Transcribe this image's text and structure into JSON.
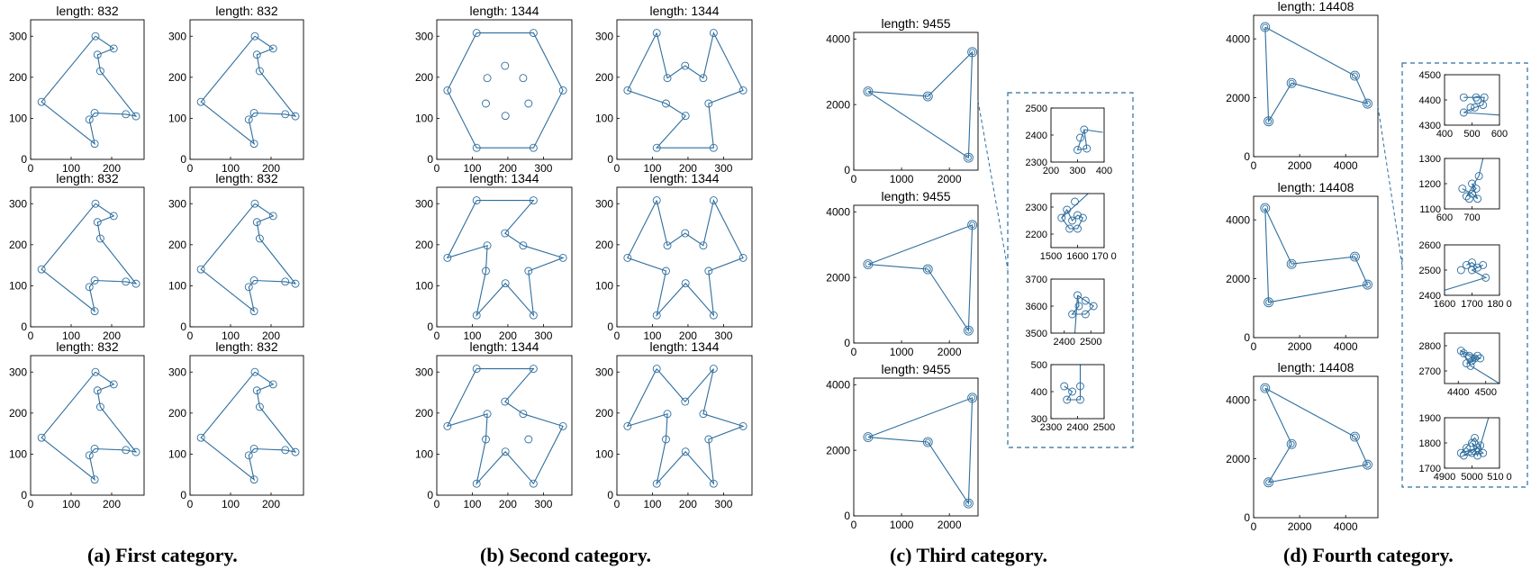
{
  "captions": {
    "a": "(a) First category.",
    "b": "(b) Second category.",
    "c": "(c) Third category.",
    "d": "(d) Fourth category."
  },
  "colors": {
    "line": "#2e6e9e",
    "box": "#2e6e9e",
    "axis": "#000000"
  },
  "chart_data": [
    {
      "type": "scatter",
      "category": "First",
      "title": "length: 832",
      "xlim": [
        0,
        280
      ],
      "ylim": [
        0,
        340
      ],
      "xticks": [
        0,
        100,
        200
      ],
      "yticks": [
        0,
        100,
        200,
        300
      ],
      "points": [
        [
          160,
          300
        ],
        [
          205,
          270
        ],
        [
          165,
          255
        ],
        [
          172,
          215
        ],
        [
          260,
          105
        ],
        [
          235,
          110
        ],
        [
          158,
          113
        ],
        [
          145,
          97
        ],
        [
          158,
          38
        ],
        [
          27,
          140
        ]
      ],
      "tours": [
        [
          0,
          1,
          2,
          3,
          4,
          5,
          6,
          7,
          8,
          9,
          0
        ],
        [
          0,
          1,
          2,
          3,
          4,
          5,
          6,
          7,
          8,
          9,
          0
        ],
        [
          0,
          1,
          2,
          3,
          4,
          5,
          6,
          7,
          8,
          9,
          0
        ],
        [
          0,
          1,
          2,
          3,
          4,
          5,
          6,
          7,
          8,
          9,
          0
        ],
        [
          0,
          1,
          2,
          3,
          4,
          5,
          6,
          7,
          8,
          9,
          0
        ],
        [
          0,
          1,
          2,
          3,
          4,
          5,
          6,
          7,
          8,
          9,
          0
        ]
      ]
    },
    {
      "type": "scatter",
      "category": "Second",
      "title": "length: 1344",
      "xlim": [
        0,
        380
      ],
      "ylim": [
        0,
        340
      ],
      "xticks": [
        0,
        100,
        200,
        300
      ],
      "yticks": [
        0,
        100,
        200,
        300
      ],
      "points": [
        [
          112,
          308
        ],
        [
          272,
          308
        ],
        [
          30,
          168
        ],
        [
          355,
          168
        ],
        [
          192,
          228
        ],
        [
          243,
          198
        ],
        [
          142,
          198
        ],
        [
          138,
          136
        ],
        [
          193,
          106
        ],
        [
          258,
          136
        ],
        [
          112,
          28
        ],
        [
          272,
          28
        ]
      ],
      "tours": [
        [
          0,
          1,
          3,
          11,
          10,
          2,
          0
        ],
        [
          0,
          6,
          4,
          5,
          1,
          3,
          9,
          11,
          10,
          8,
          7,
          2,
          0
        ],
        [
          0,
          1,
          4,
          5,
          3,
          9,
          11,
          8,
          10,
          7,
          6,
          2,
          0
        ],
        [
          0,
          6,
          4,
          5,
          1,
          3,
          9,
          11,
          8,
          10,
          7,
          2,
          0
        ],
        [
          0,
          1,
          4,
          5,
          3,
          11,
          8,
          10,
          7,
          6,
          2,
          0
        ],
        [
          0,
          4,
          1,
          5,
          3,
          9,
          11,
          8,
          10,
          7,
          6,
          2,
          0
        ]
      ]
    },
    {
      "type": "scatter",
      "category": "Third",
      "title": "length: 9455",
      "xlim": [
        0,
        2600
      ],
      "ylim": [
        0,
        4200
      ],
      "xticks": [
        0,
        1000,
        2000
      ],
      "yticks": [
        0,
        2000,
        4000
      ],
      "points": [
        [
          300,
          2400
        ],
        [
          1550,
          2250
        ],
        [
          2480,
          3600
        ],
        [
          2400,
          380
        ]
      ],
      "tours": [
        [
          0,
          1,
          2,
          3,
          0
        ],
        [
          0,
          2,
          3,
          1,
          0
        ],
        [
          0,
          2,
          3,
          1,
          0
        ]
      ]
    },
    {
      "type": "scatter",
      "category": "Fourth",
      "title": "length: 14408",
      "xlim": [
        0,
        5400
      ],
      "ylim": [
        0,
        4800
      ],
      "xticks": [
        0,
        2000,
        4000
      ],
      "yticks": [
        0,
        2000,
        4000
      ],
      "points": [
        [
          500,
          4400
        ],
        [
          4400,
          2750
        ],
        [
          4950,
          1800
        ],
        [
          1650,
          2500
        ],
        [
          650,
          1200
        ]
      ],
      "tours": [
        [
          0,
          1,
          2,
          3,
          4,
          0
        ],
        [
          0,
          4,
          2,
          1,
          3,
          0
        ],
        [
          0,
          1,
          2,
          4,
          3,
          0
        ]
      ]
    },
    {
      "type": "scatter",
      "category": "Third zoom insets",
      "insets": [
        {
          "xlim": [
            200,
            400
          ],
          "ylim": [
            2300,
            2500
          ],
          "xticks": [
            200,
            300,
            400
          ],
          "yticks": [
            2300,
            2400,
            2500
          ],
          "xticklabels": [
            "200",
            "300",
            "400"
          ],
          "yticklabels": [
            "2300",
            "2400",
            "2500"
          ],
          "points": [
            [
              325,
              2420
            ],
            [
              300,
              2345
            ],
            [
              335,
              2350
            ],
            [
              310,
              2390
            ]
          ],
          "tour": [
            0,
            1,
            2,
            0
          ],
          "exit_to": [
            395,
            2410
          ]
        },
        {
          "xlim": [
            1500,
            1700
          ],
          "ylim": [
            2150,
            2350
          ],
          "xticks": [
            1500,
            1600,
            1700
          ],
          "yticks": [
            2200,
            2300
          ],
          "xticklabels": [
            "1500",
            "1600",
            "170 0"
          ],
          "yticklabels": [
            "2200",
            "2300"
          ],
          "points": [
            [
              1540,
              2260
            ],
            [
              1560,
              2290
            ],
            [
              1580,
              2250
            ],
            [
              1600,
              2270
            ],
            [
              1620,
              2260
            ],
            [
              1600,
              2220
            ],
            [
              1570,
              2220
            ],
            [
              1590,
              2320
            ]
          ],
          "tour": [
            0,
            1,
            2,
            3,
            4,
            5,
            6,
            0
          ],
          "exit_to": [
            1640,
            2350
          ]
        },
        {
          "xlim": [
            2350,
            2550
          ],
          "ylim": [
            3500,
            3700
          ],
          "xticks": [
            2400,
            2500
          ],
          "yticks": [
            3500,
            3600,
            3700
          ],
          "xticklabels": [
            "2400",
            "2500"
          ],
          "yticklabels": [
            "3500",
            "3600",
            "3700"
          ],
          "points": [
            [
              2450,
              3640
            ],
            [
              2480,
              3620
            ],
            [
              2430,
              3570
            ],
            [
              2480,
              3570
            ],
            [
              2510,
              3600
            ],
            [
              2455,
              3600
            ]
          ],
          "tour": [
            0,
            1,
            4,
            3,
            2,
            5,
            0
          ],
          "exit_to": [
            2440,
            3500
          ]
        },
        {
          "xlim": [
            2300,
            2500
          ],
          "ylim": [
            300,
            500
          ],
          "xticks": [
            2300,
            2400,
            2500
          ],
          "yticks": [
            300,
            400,
            500
          ],
          "xticklabels": [
            "2300",
            "2400",
            "2500"
          ],
          "yticklabels": [
            "300",
            "400",
            "500"
          ],
          "points": [
            [
              2350,
              420
            ],
            [
              2380,
              400
            ],
            [
              2360,
              370
            ],
            [
              2410,
              370
            ],
            [
              2410,
              420
            ]
          ],
          "tour": [
            0,
            1,
            2,
            3,
            4
          ],
          "exit_to": [
            2410,
            500
          ]
        }
      ]
    },
    {
      "type": "scatter",
      "category": "Fourth zoom insets",
      "insets": [
        {
          "xlim": [
            400,
            600
          ],
          "ylim": [
            4300,
            4500
          ],
          "xticks": [
            400,
            500,
            600
          ],
          "yticks": [
            4300,
            4400,
            4500
          ],
          "xticklabels": [
            "400",
            "500",
            "600"
          ],
          "yticklabels": [
            "4300",
            "4400",
            "4500"
          ],
          "points": [
            [
              470,
              4410
            ],
            [
              515,
              4410
            ],
            [
              545,
              4410
            ],
            [
              540,
              4380
            ],
            [
              510,
              4370
            ],
            [
              470,
              4350
            ],
            [
              520,
              4400
            ],
            [
              495,
              4370
            ]
          ],
          "tour": [
            0,
            1,
            2,
            3,
            4,
            5
          ],
          "exit_to": [
            600,
            4340
          ]
        },
        {
          "xlim": [
            600,
            800
          ],
          "ylim": [
            1100,
            1300
          ],
          "xticks": [
            600,
            700
          ],
          "yticks": [
            1100,
            1200,
            1300
          ],
          "xticklabels": [
            "600",
            "700"
          ],
          "yticklabels": [
            "1100",
            "1200",
            "1300"
          ],
          "points": [
            [
              665,
              1180
            ],
            [
              700,
              1160
            ],
            [
              720,
              1140
            ],
            [
              700,
              1200
            ],
            [
              715,
              1180
            ],
            [
              680,
              1150
            ],
            [
              725,
              1230
            ],
            [
              690,
              1140
            ]
          ],
          "tour": [
            0,
            1,
            2,
            3,
            4,
            5,
            6
          ],
          "exit_to": [
            740,
            1300
          ]
        },
        {
          "xlim": [
            1600,
            1800
          ],
          "ylim": [
            2400,
            2600
          ],
          "xticks": [
            1600,
            1700,
            1800
          ],
          "yticks": [
            2400,
            2500,
            2600
          ],
          "xticklabels": [
            "1600",
            "1700",
            "180 0"
          ],
          "yticklabels": [
            "2400",
            "2500",
            "2600"
          ],
          "points": [
            [
              1680,
              2520
            ],
            [
              1700,
              2530
            ],
            [
              1720,
              2510
            ],
            [
              1740,
              2520
            ],
            [
              1700,
              2500
            ],
            [
              1750,
              2470
            ],
            [
              1660,
              2500
            ]
          ],
          "tour": [
            0,
            1,
            2,
            3,
            4,
            5
          ],
          "exit_to": [
            1600,
            2420
          ]
        },
        {
          "xlim": [
            4350,
            4550
          ],
          "ylim": [
            2650,
            2850
          ],
          "xticks": [
            4400,
            4500
          ],
          "yticks": [
            2700,
            2800
          ],
          "xticklabels": [
            "4400",
            "4500"
          ],
          "yticklabels": [
            "2700",
            "2800"
          ],
          "points": [
            [
              4420,
              2770
            ],
            [
              4440,
              2760
            ],
            [
              4460,
              2750
            ],
            [
              4450,
              2740
            ],
            [
              4470,
              2760
            ],
            [
              4430,
              2730
            ],
            [
              4480,
              2750
            ],
            [
              4410,
              2780
            ],
            [
              4445,
              2720
            ]
          ],
          "tour": [
            0,
            1,
            2,
            3,
            4,
            5,
            6,
            7,
            8
          ],
          "exit_to": [
            4550,
            2650
          ]
        },
        {
          "xlim": [
            4900,
            5100
          ],
          "ylim": [
            1700,
            1900
          ],
          "xticks": [
            4900,
            5000,
            5100
          ],
          "yticks": [
            1700,
            1800,
            1900
          ],
          "xticklabels": [
            "4900",
            "5000",
            "510 0"
          ],
          "yticklabels": [
            "1700",
            "1800",
            "1900"
          ],
          "points": [
            [
              4980,
              1780
            ],
            [
              5000,
              1760
            ],
            [
              5020,
              1780
            ],
            [
              4960,
              1760
            ],
            [
              5010,
              1820
            ],
            [
              5030,
              1790
            ],
            [
              4970,
              1750
            ],
            [
              5040,
              1760
            ],
            [
              5000,
              1800
            ],
            [
              5020,
              1750
            ]
          ],
          "tour": [
            0,
            1,
            2,
            3,
            4,
            5,
            6,
            7,
            8,
            9
          ],
          "exit_to": [
            5060,
            1900
          ]
        }
      ]
    }
  ]
}
